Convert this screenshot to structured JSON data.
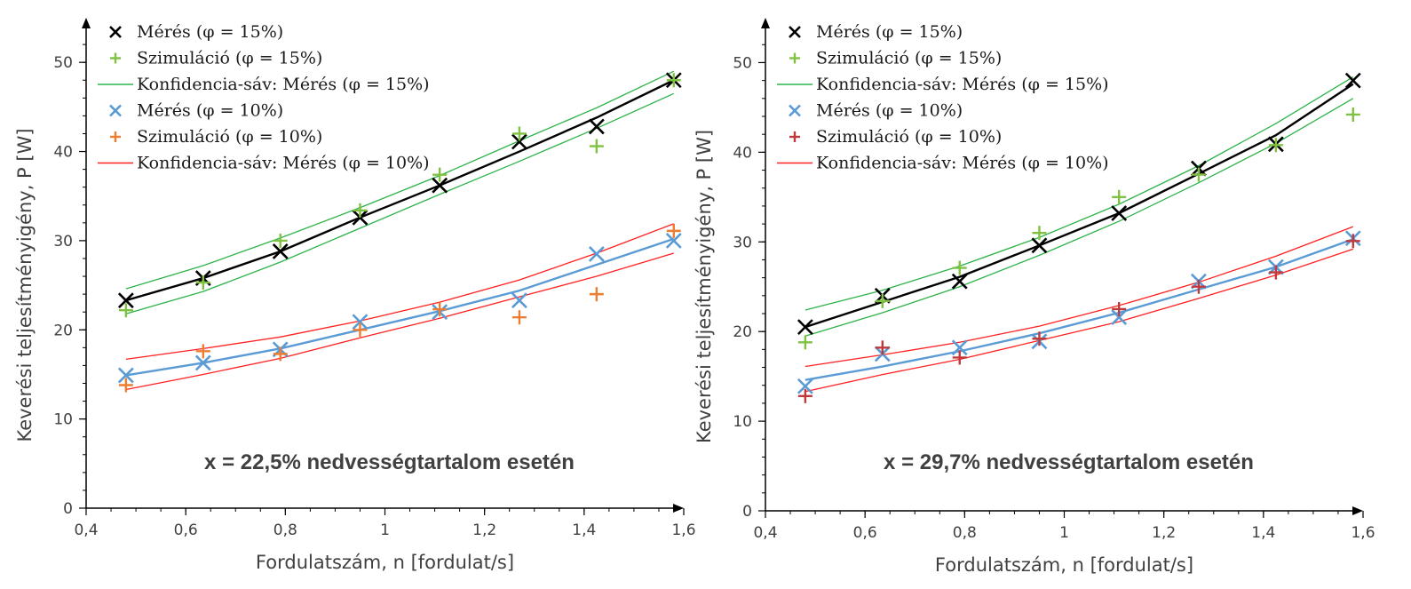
{
  "chart_data": [
    {
      "type": "scatter",
      "title": "",
      "xlabel": "Fordulatszám, n [fordulat/s]",
      "ylabel": "Keverési teljesítményigény, P [W]",
      "xlim": [
        0.4,
        1.6
      ],
      "ylim": [
        0,
        55
      ],
      "xticks": [
        0.4,
        0.6,
        0.8,
        1.0,
        1.2,
        1.4,
        1.6
      ],
      "xtick_labels": [
        "0,4",
        "0,6",
        "0,8",
        "1",
        "1,2",
        "1,4",
        "1,6"
      ],
      "yticks": [
        0,
        10,
        20,
        30,
        40,
        50
      ],
      "ytick_labels": [
        "0",
        "10",
        "20",
        "30",
        "40",
        "50"
      ],
      "grid": false,
      "legend_position": "top-left",
      "annotation": "x = 22,5% nedvességtartalom esetén",
      "series": [
        {
          "name": "Mérés (φ = 15%)",
          "marker": "x",
          "color": "#000000",
          "x": [
            0.48,
            0.635,
            0.79,
            0.95,
            1.11,
            1.27,
            1.425,
            1.58
          ],
          "y": [
            23.3,
            25.8,
            28.8,
            32.6,
            36.2,
            41.1,
            42.8,
            48.0
          ]
        },
        {
          "name": "Szimuláció (φ = 15%)",
          "marker": "+",
          "color": "#7fc241",
          "x": [
            0.48,
            0.635,
            0.79,
            0.95,
            1.11,
            1.27,
            1.425,
            1.58
          ],
          "y": [
            22.2,
            25.3,
            30.0,
            33.4,
            37.4,
            42.0,
            40.6,
            48.0
          ]
        },
        {
          "name": "Konfidencia-sáv: Mérés (φ = 15%)",
          "marker": "line",
          "color": "#2db34a",
          "x": [
            0.48,
            0.635,
            0.79,
            0.95,
            1.11,
            1.27,
            1.425,
            1.58
          ],
          "y_upper": [
            24.6,
            27.2,
            30.3,
            33.7,
            37.3,
            41.2,
            44.9,
            49.0
          ],
          "y_lower": [
            21.8,
            24.3,
            27.6,
            31.4,
            35.2,
            38.9,
            42.6,
            46.5
          ]
        },
        {
          "name": "Mérés (φ = 10%)",
          "marker": "x",
          "color": "#5b9bd5",
          "x": [
            0.48,
            0.635,
            0.79,
            0.95,
            1.11,
            1.27,
            1.425,
            1.58
          ],
          "y": [
            14.9,
            16.3,
            17.8,
            20.9,
            22.0,
            23.3,
            28.5,
            30.0
          ]
        },
        {
          "name": "Szimuláció (φ = 10%)",
          "marker": "+",
          "color": "#ed7d31",
          "x": [
            0.48,
            0.635,
            0.79,
            0.95,
            1.11,
            1.27,
            1.425,
            1.58
          ],
          "y": [
            13.8,
            17.6,
            17.3,
            20.0,
            22.3,
            21.4,
            24.0,
            31.1
          ]
        },
        {
          "name": "Konfidencia-sáv: Mérés (φ = 10%)",
          "marker": "line",
          "color": "#ff2020",
          "x": [
            0.48,
            0.635,
            0.79,
            0.95,
            1.11,
            1.27,
            1.425,
            1.58
          ],
          "y_upper": [
            16.7,
            17.9,
            19.2,
            21.0,
            23.1,
            25.6,
            28.6,
            31.9
          ],
          "y_lower": [
            13.3,
            15.0,
            16.8,
            19.1,
            21.3,
            23.7,
            26.0,
            28.6
          ]
        }
      ],
      "fit_lines": [
        {
          "color": "#000000",
          "x": [
            0.48,
            0.635,
            0.79,
            0.95,
            1.11,
            1.27,
            1.425,
            1.58
          ],
          "y": [
            23.3,
            25.8,
            28.8,
            32.6,
            36.2,
            40.0,
            43.8,
            48.0
          ]
        },
        {
          "color": "#5b9bd5",
          "x": [
            0.48,
            0.635,
            0.79,
            0.95,
            1.11,
            1.27,
            1.425,
            1.58
          ],
          "y": [
            14.9,
            16.3,
            17.9,
            20.0,
            22.1,
            24.4,
            27.3,
            30.2
          ]
        }
      ]
    },
    {
      "type": "scatter",
      "title": "",
      "xlabel": "Fordulatszám, n [fordulat/s]",
      "ylabel": "Keverési teljesítményigény, P [W]",
      "xlim": [
        0.4,
        1.6
      ],
      "ylim": [
        0,
        55
      ],
      "xticks": [
        0.4,
        0.6,
        0.8,
        1.0,
        1.2,
        1.4,
        1.6
      ],
      "xtick_labels": [
        "0,4",
        "0,6",
        "0,8",
        "1",
        "1,2",
        "1,4",
        "1,6"
      ],
      "yticks": [
        0,
        10,
        20,
        30,
        40,
        50
      ],
      "ytick_labels": [
        "0",
        "10",
        "20",
        "30",
        "40",
        "50"
      ],
      "grid": false,
      "legend_position": "top-left",
      "annotation": "x = 29,7% nedvességtartalom esetén",
      "series": [
        {
          "name": "Mérés (φ = 15%)",
          "marker": "x",
          "color": "#000000",
          "x": [
            0.48,
            0.635,
            0.79,
            0.95,
            1.11,
            1.27,
            1.425,
            1.58
          ],
          "y": [
            20.5,
            24.0,
            25.6,
            29.6,
            33.2,
            38.2,
            40.9,
            48.0
          ]
        },
        {
          "name": "Szimuláció (φ = 15%)",
          "marker": "+",
          "color": "#7fc241",
          "x": [
            0.48,
            0.635,
            0.79,
            0.95,
            1.11,
            1.27,
            1.425,
            1.58
          ],
          "y": [
            18.8,
            23.4,
            27.1,
            31.0,
            35.0,
            37.5,
            40.8,
            44.2
          ]
        },
        {
          "name": "Konfidencia-sáv: Mérés (φ = 15%)",
          "marker": "line",
          "color": "#2db34a",
          "x": [
            0.48,
            0.635,
            0.79,
            0.95,
            1.11,
            1.27,
            1.425,
            1.58
          ],
          "y_upper": [
            22.4,
            24.6,
            27.3,
            30.5,
            34.2,
            38.5,
            43.2,
            48.4
          ],
          "y_lower": [
            19.5,
            22.1,
            25.0,
            28.5,
            32.3,
            36.6,
            41.0,
            46.0
          ]
        },
        {
          "name": "Mérés (φ = 10%)",
          "marker": "x",
          "color": "#5b9bd5",
          "x": [
            0.48,
            0.635,
            0.79,
            0.95,
            1.11,
            1.27,
            1.425,
            1.58
          ],
          "y": [
            13.9,
            17.5,
            18.2,
            18.9,
            21.6,
            25.6,
            27.2,
            30.4
          ]
        },
        {
          "name": "Szimuláció (φ = 10%)",
          "marker": "+",
          "color": "#c0393b",
          "x": [
            0.48,
            0.635,
            0.79,
            0.95,
            1.11,
            1.27,
            1.425,
            1.58
          ],
          "y": [
            12.8,
            18.2,
            17.1,
            19.2,
            22.5,
            25.0,
            26.6,
            30.1
          ]
        },
        {
          "name": "Konfidencia-sáv: Mérés (φ = 10%)",
          "marker": "line",
          "color": "#ff2020",
          "x": [
            0.48,
            0.635,
            0.79,
            0.95,
            1.11,
            1.27,
            1.425,
            1.58
          ],
          "y_upper": [
            16.1,
            17.4,
            18.8,
            20.6,
            22.9,
            25.5,
            28.4,
            31.7
          ],
          "y_lower": [
            13.3,
            15.2,
            16.9,
            19.0,
            21.1,
            23.7,
            26.3,
            29.2
          ]
        }
      ],
      "fit_lines": [
        {
          "color": "#000000",
          "x": [
            0.48,
            0.635,
            0.79,
            0.95,
            1.11,
            1.27,
            1.425,
            1.58
          ],
          "y": [
            20.5,
            23.3,
            26.1,
            29.6,
            33.2,
            37.6,
            41.9,
            47.6
          ]
        },
        {
          "color": "#5b9bd5",
          "x": [
            0.48,
            0.635,
            0.79,
            0.95,
            1.11,
            1.27,
            1.425,
            1.58
          ],
          "y": [
            14.6,
            16.1,
            17.8,
            19.8,
            22.1,
            24.7,
            27.2,
            30.3
          ]
        }
      ]
    }
  ]
}
